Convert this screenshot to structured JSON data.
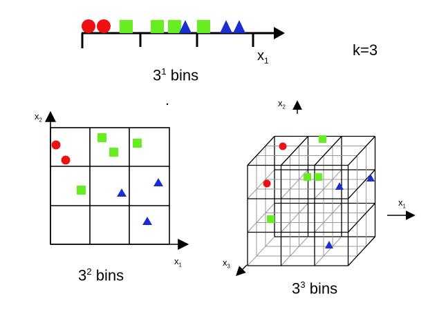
{
  "one_d": {
    "axis_base": "x",
    "axis_sub": "1",
    "caption_base": "3",
    "caption_exp": "1",
    "caption_word": "bins"
  },
  "k_label": "k=3",
  "two_d": {
    "x_axis_base": "x",
    "x_axis_sub": "1",
    "y_axis_base": "x",
    "y_axis_sub": "2",
    "caption_base": "3",
    "caption_exp": "2",
    "caption_word": "bins"
  },
  "three_d": {
    "x1_base": "x",
    "x1_sub": "1",
    "x2_base": "x",
    "x2_sub": "2",
    "x3_base": "x",
    "x3_sub": "3",
    "caption_base": "3",
    "caption_exp": "3",
    "caption_word": "bins"
  },
  "colors": {
    "circle": "#ee1111",
    "square": "#66ee22",
    "triangle": "#1a2fd0",
    "line": "#000000",
    "grid_back": "#999999"
  }
}
